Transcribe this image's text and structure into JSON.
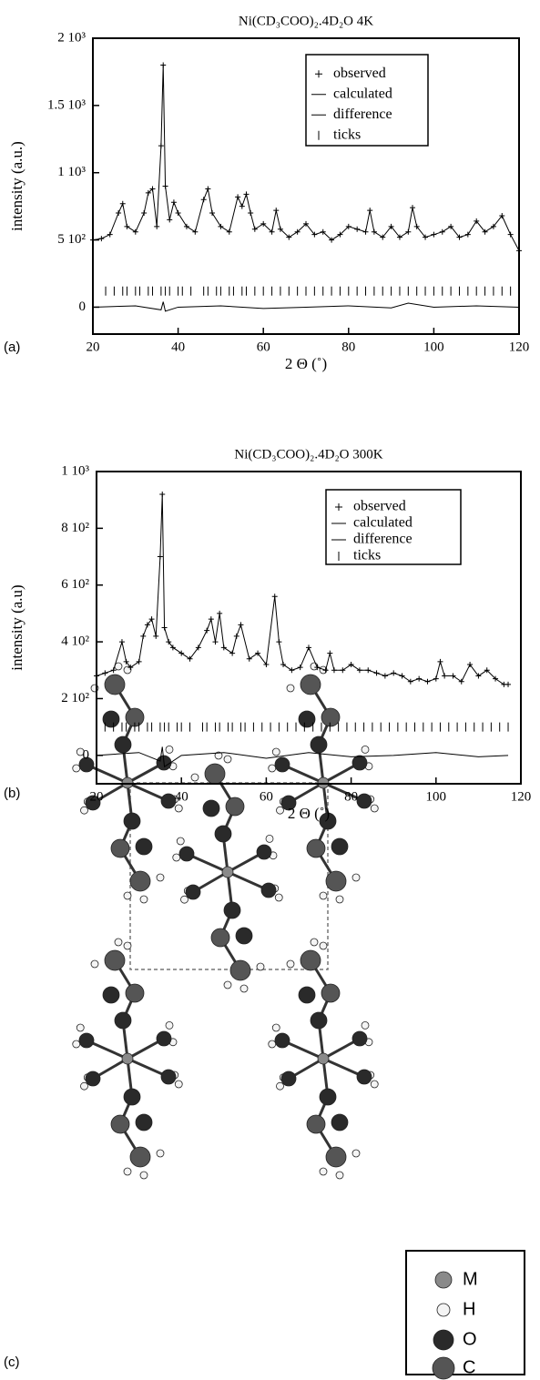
{
  "chart_data": [
    {
      "type": "line",
      "title": "Ni(CD₃COO)₂.4D₂O  4K",
      "x_label": "2 Θ (˚)",
      "y_label": "intensity (a.u.)",
      "xlim": [
        20,
        120
      ],
      "ylim": [
        -200,
        2000
      ],
      "xticks": [
        20,
        40,
        60,
        80,
        100,
        120
      ],
      "yticks": [
        0,
        {
          "value": 500,
          "label": "5 10²"
        },
        {
          "value": 1000,
          "label": "1 10³"
        },
        {
          "value": 1500,
          "label": "1.5 10³"
        },
        {
          "value": 2000,
          "label": "2 10³"
        }
      ],
      "series": [
        {
          "name": "observed",
          "color": "#000000",
          "style": "cross",
          "x": [
            20,
            22,
            24,
            26,
            27,
            28,
            30,
            32,
            33,
            34,
            35,
            36,
            36.5,
            37,
            38,
            39,
            40,
            42,
            44,
            46,
            47,
            48,
            50,
            52,
            54,
            55,
            56,
            57,
            58,
            60,
            62,
            63,
            64,
            66,
            68,
            70,
            72,
            74,
            76,
            78,
            80,
            82,
            84,
            85,
            86,
            88,
            90,
            92,
            94,
            95,
            96,
            98,
            100,
            102,
            104,
            106,
            108,
            110,
            112,
            114,
            116,
            118,
            120
          ],
          "values": [
            500,
            510,
            540,
            700,
            770,
            600,
            560,
            700,
            850,
            880,
            600,
            1200,
            1800,
            900,
            650,
            780,
            700,
            600,
            560,
            800,
            880,
            700,
            600,
            560,
            820,
            750,
            840,
            700,
            580,
            620,
            560,
            720,
            580,
            520,
            560,
            620,
            540,
            560,
            500,
            540,
            600,
            580,
            560,
            720,
            560,
            520,
            600,
            520,
            560,
            740,
            600,
            520,
            540,
            560,
            600,
            520,
            540,
            640,
            560,
            600,
            680,
            540,
            420
          ]
        },
        {
          "name": "calculated",
          "color": "#000000",
          "style": "line",
          "x": [
            20,
            22,
            24,
            26,
            27,
            28,
            30,
            32,
            33,
            34,
            35,
            36,
            36.5,
            37,
            38,
            39,
            40,
            42,
            44,
            46,
            47,
            48,
            50,
            52,
            54,
            55,
            56,
            57,
            58,
            60,
            62,
            63,
            64,
            66,
            68,
            70,
            72,
            74,
            76,
            78,
            80,
            82,
            84,
            85,
            86,
            88,
            90,
            92,
            94,
            95,
            96,
            98,
            100,
            102,
            104,
            106,
            108,
            110,
            112,
            114,
            116,
            118,
            120
          ],
          "values": [
            500,
            510,
            540,
            700,
            770,
            600,
            560,
            700,
            850,
            880,
            600,
            1200,
            1800,
            900,
            650,
            780,
            700,
            600,
            560,
            800,
            880,
            700,
            600,
            560,
            820,
            750,
            840,
            700,
            580,
            620,
            560,
            720,
            580,
            520,
            560,
            620,
            540,
            560,
            500,
            540,
            600,
            580,
            560,
            720,
            560,
            520,
            600,
            520,
            560,
            740,
            600,
            520,
            540,
            560,
            600,
            520,
            540,
            640,
            560,
            600,
            680,
            540,
            420
          ]
        },
        {
          "name": "difference",
          "color": "#000000",
          "style": "line",
          "x": [
            20,
            30,
            36,
            36.5,
            37,
            40,
            50,
            60,
            70,
            80,
            90,
            94,
            100,
            110,
            120
          ],
          "values": [
            0,
            10,
            -20,
            40,
            -30,
            0,
            10,
            -10,
            0,
            10,
            -5,
            30,
            0,
            10,
            0
          ]
        },
        {
          "name": "ticks",
          "color": "#000000",
          "style": "vtick",
          "level": 120,
          "x": [
            23,
            25,
            27,
            28,
            30,
            31,
            33,
            34,
            36,
            37,
            38,
            40,
            41,
            43,
            46,
            47,
            49,
            50,
            52,
            53,
            55,
            56,
            58,
            60,
            62,
            64,
            66,
            68,
            70,
            72,
            74,
            76,
            78,
            80,
            82,
            84,
            86,
            88,
            90,
            92,
            94,
            96,
            98,
            100,
            102,
            104,
            106,
            108,
            110,
            112,
            114,
            116,
            118,
            120
          ]
        }
      ]
    },
    {
      "type": "line",
      "title": "Ni(CD₃COO)₂.4D₂O  300K",
      "x_label": "2 Θ  (˚)",
      "y_label": "intensity (a.u)",
      "xlim": [
        20,
        120
      ],
      "ylim": [
        -100,
        1000
      ],
      "xticks": [
        20,
        40,
        60,
        80,
        100,
        120
      ],
      "yticks": [
        0,
        {
          "value": 200,
          "label": "2 10²"
        },
        {
          "value": 400,
          "label": "4 10²"
        },
        {
          "value": 600,
          "label": "6 10²"
        },
        {
          "value": 800,
          "label": "8 10²"
        },
        {
          "value": 1000,
          "label": "1 10³"
        }
      ],
      "series": [
        {
          "name": "observed",
          "color": "#000000",
          "style": "cross",
          "x": [
            20,
            22,
            24,
            26,
            27,
            28,
            30,
            31,
            32,
            33,
            34,
            35,
            35.5,
            36,
            37,
            38,
            40,
            42,
            44,
            46,
            47,
            48,
            49,
            50,
            52,
            53,
            54,
            56,
            58,
            60,
            62,
            63,
            64,
            66,
            68,
            70,
            72,
            74,
            75,
            76,
            78,
            80,
            82,
            84,
            86,
            88,
            90,
            92,
            94,
            96,
            98,
            100,
            101,
            102,
            104,
            106,
            108,
            110,
            112,
            114,
            116,
            117
          ],
          "values": [
            280,
            290,
            300,
            400,
            330,
            310,
            330,
            420,
            460,
            480,
            420,
            700,
            920,
            450,
            400,
            380,
            360,
            340,
            380,
            440,
            480,
            400,
            500,
            380,
            360,
            420,
            460,
            340,
            360,
            320,
            560,
            400,
            320,
            300,
            310,
            380,
            310,
            300,
            360,
            300,
            300,
            320,
            300,
            300,
            290,
            280,
            290,
            280,
            260,
            270,
            260,
            270,
            330,
            280,
            280,
            260,
            320,
            280,
            300,
            270,
            250,
            250
          ]
        },
        {
          "name": "calculated",
          "color": "#000000",
          "style": "line",
          "x": [
            20,
            22,
            24,
            26,
            27,
            28,
            30,
            31,
            32,
            33,
            34,
            35,
            35.5,
            36,
            37,
            38,
            40,
            42,
            44,
            46,
            47,
            48,
            49,
            50,
            52,
            53,
            54,
            56,
            58,
            60,
            62,
            63,
            64,
            66,
            68,
            70,
            72,
            74,
            75,
            76,
            78,
            80,
            82,
            84,
            86,
            88,
            90,
            92,
            94,
            96,
            98,
            100,
            101,
            102,
            104,
            106,
            108,
            110,
            112,
            114,
            116,
            117
          ],
          "values": [
            280,
            290,
            300,
            400,
            330,
            310,
            330,
            420,
            460,
            480,
            420,
            700,
            920,
            450,
            400,
            380,
            360,
            340,
            380,
            440,
            480,
            400,
            500,
            380,
            360,
            420,
            460,
            340,
            360,
            320,
            560,
            400,
            320,
            300,
            310,
            380,
            310,
            300,
            360,
            300,
            300,
            320,
            300,
            300,
            290,
            280,
            290,
            280,
            260,
            270,
            260,
            270,
            330,
            280,
            280,
            260,
            320,
            280,
            300,
            270,
            250,
            250
          ]
        },
        {
          "name": "difference",
          "color": "#000000",
          "style": "line",
          "x": [
            20,
            30,
            35,
            35.5,
            36,
            40,
            50,
            60,
            70,
            80,
            90,
            100,
            110,
            117
          ],
          "values": [
            0,
            10,
            -20,
            30,
            -40,
            0,
            10,
            -10,
            10,
            -5,
            0,
            10,
            -5,
            0
          ]
        },
        {
          "name": "ticks",
          "color": "#000000",
          "style": "vtick",
          "level": 100,
          "x": [
            22,
            24,
            26,
            27,
            29,
            30,
            32,
            33,
            35,
            36,
            37,
            39,
            40,
            42,
            45,
            46,
            48,
            49,
            51,
            52,
            54,
            55,
            57,
            59,
            61,
            63,
            65,
            67,
            69,
            71,
            73,
            75,
            77,
            79,
            81,
            83,
            85,
            87,
            89,
            91,
            93,
            95,
            97,
            99,
            101,
            103,
            105,
            107,
            109,
            111,
            113,
            115,
            117
          ]
        }
      ]
    }
  ],
  "panels": [
    "(a)",
    "(b)",
    "(c)"
  ],
  "diagram": {
    "legend": [
      "M",
      "H",
      "O",
      "C"
    ]
  }
}
